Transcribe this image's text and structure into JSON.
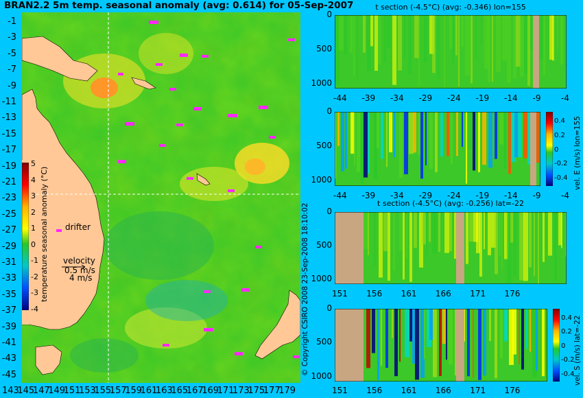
{
  "title": "BRAN2.2 5m temp. seasonal anomaly (avg: 0.614) for 05-Sep-2007",
  "map": {
    "lat_ticks": [
      "-1",
      "-3",
      "-5",
      "-7",
      "-9",
      "-11",
      "-13",
      "-15",
      "-17",
      "-19",
      "-21",
      "-23",
      "-25",
      "-27",
      "-29",
      "-31",
      "-33",
      "-35",
      "-37",
      "-39",
      "-41",
      "-43",
      "-45"
    ],
    "lon_ticks": [
      "143",
      "145",
      "147",
      "149",
      "151",
      "153",
      "155",
      "157",
      "159",
      "161",
      "163",
      "165",
      "167",
      "169",
      "171",
      "173",
      "175",
      "177",
      "179"
    ],
    "colorbar_label": "temperature seasonal anomaly (°C)",
    "colorbar_ticks": [
      "5",
      "4",
      "3",
      "2",
      "1",
      "0",
      "-1",
      "-2",
      "-3",
      "-4"
    ],
    "drifter_label": "drifter",
    "velocity_label": "velocity",
    "velocity_value": "0.5 m/s",
    "velocity_value2": "4 m/s"
  },
  "copyright": "© Copyright CSIRO 2008 23-Sep-2008 18:10:02",
  "panels": [
    {
      "title": "t section (-4.5°C) (avg: -0.346) lon=155",
      "x_ticks": [
        "-44",
        "-39",
        "-34",
        "-29",
        "-24",
        "-19",
        "-14",
        "-9",
        "-4"
      ],
      "depth_ticks": [
        "0",
        "500",
        "1000"
      ],
      "side_label": ""
    },
    {
      "title": "",
      "x_ticks": [
        "-44",
        "-39",
        "-34",
        "-29",
        "-24",
        "-19",
        "-14",
        "-9",
        "-4"
      ],
      "depth_ticks": [
        "0",
        "500",
        "1000"
      ],
      "side_label": "vel. E (m/s) lon=155",
      "cbar_ticks": [
        "0.4",
        "0.2",
        "0",
        "-0.2",
        "-0.4"
      ]
    },
    {
      "title": "t section (-4.5°C) (avg: -0.256) lat=-22",
      "x_ticks": [
        "151",
        "156",
        "161",
        "166",
        "171",
        "176"
      ],
      "depth_ticks": [
        "0",
        "500",
        "1000"
      ],
      "side_label": ""
    },
    {
      "title": "",
      "x_ticks": [
        "151",
        "156",
        "161",
        "166",
        "171",
        "176"
      ],
      "depth_ticks": [
        "0",
        "500",
        "1000"
      ],
      "side_label": "vel. S (m/s) lat=-22",
      "cbar_ticks": [
        "0.4",
        "0.2",
        "0",
        "-0.2",
        "-0.4"
      ]
    }
  ],
  "colors": {
    "background": "#00c8ff",
    "land": "#ffc896",
    "ocean": "#3cc828",
    "section_land": "#c8a682"
  }
}
